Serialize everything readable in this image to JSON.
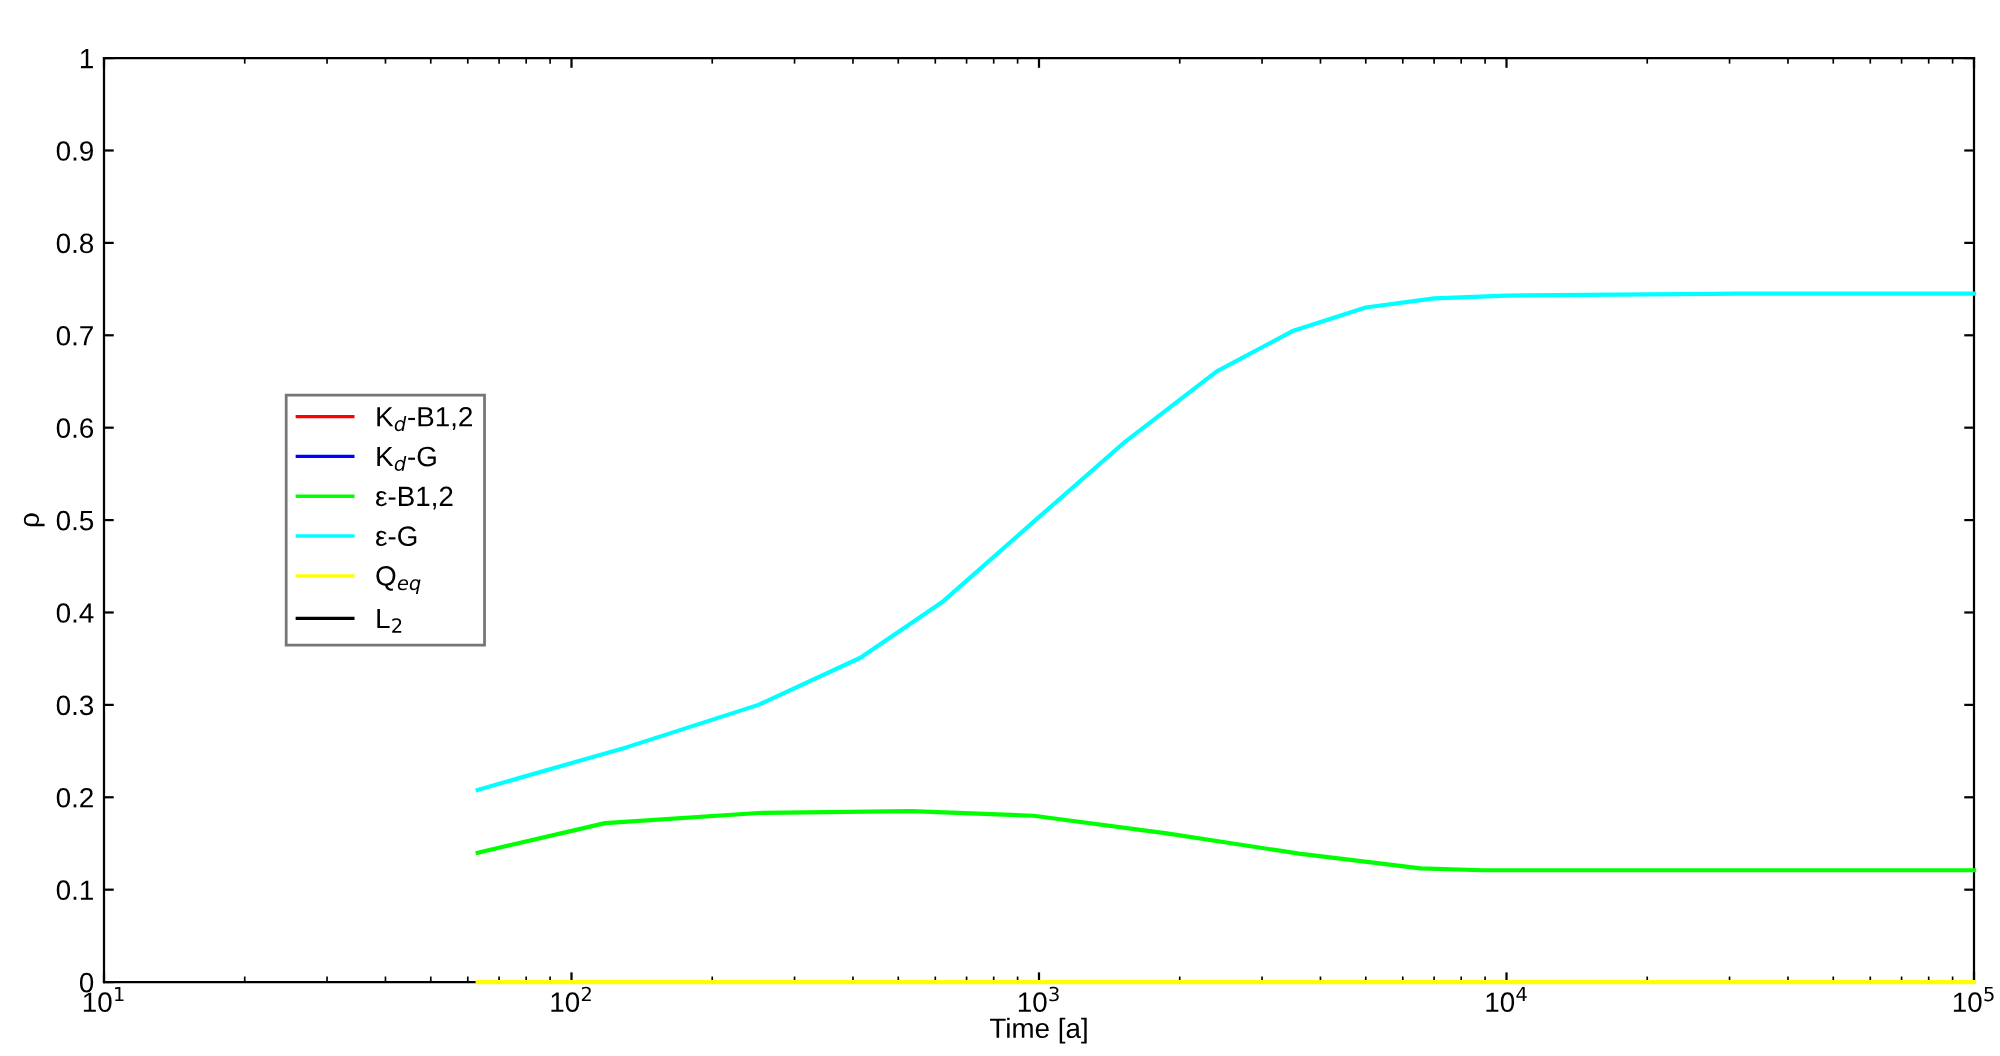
{
  "chart_data": {
    "type": "line",
    "xlabel": "Time [a]",
    "ylabel": "ρ",
    "log": "x",
    "grid": false,
    "legend": "center left",
    "marker": "none",
    "line_style": "solid",
    "xlim": [
      10,
      100000
    ],
    "xticks": [
      {
        "value": 10,
        "label": "10$^{1}$"
      },
      {
        "value": 100,
        "label": "10$^{2}$"
      },
      {
        "value": 1000,
        "label": "10$^{3}$"
      },
      {
        "value": 10000,
        "label": "10$^{4}$"
      },
      {
        "value": 100000,
        "label": "10$^{5}$"
      }
    ],
    "ylim": [
      0,
      1
    ],
    "yticks": [
      0,
      0.1,
      0.2,
      0.3,
      0.4,
      0.5,
      0.6,
      0.7,
      0.8,
      0.9,
      1
    ],
    "series": [
      {
        "name": "K$_{d}$-B1,2",
        "color": "#ff0000"
      },
      {
        "name": "K$_{d}$-G",
        "color": "#0000ff"
      },
      {
        "name": "ε-B1,2",
        "color": "#00ff00",
        "x": [
          63,
          118,
          251,
          533,
          973,
          1876,
          3600,
          6550,
          8900,
          100000
        ],
        "values": [
          0.14,
          0.172,
          0.183,
          0.185,
          0.18,
          0.161,
          0.139,
          0.123,
          0.121,
          0.121
        ]
      },
      {
        "name": "ε-G",
        "color": "#00ffff",
        "x": [
          63,
          131,
          251,
          415,
          620,
          973,
          1530,
          2400,
          3500,
          5000,
          7000,
          10000,
          31600,
          100000
        ],
        "values": [
          0.208,
          0.254,
          0.3,
          0.351,
          0.411,
          0.498,
          0.585,
          0.661,
          0.705,
          0.73,
          0.74,
          0.743,
          0.745,
          0.745
        ]
      },
      {
        "name": "Q$_{eq}$",
        "color": "#ffff00",
        "x": [
          63,
          100000
        ],
        "values": [
          0,
          0
        ]
      },
      {
        "name": "L$_{2}$",
        "color": "#000000"
      }
    ]
  }
}
